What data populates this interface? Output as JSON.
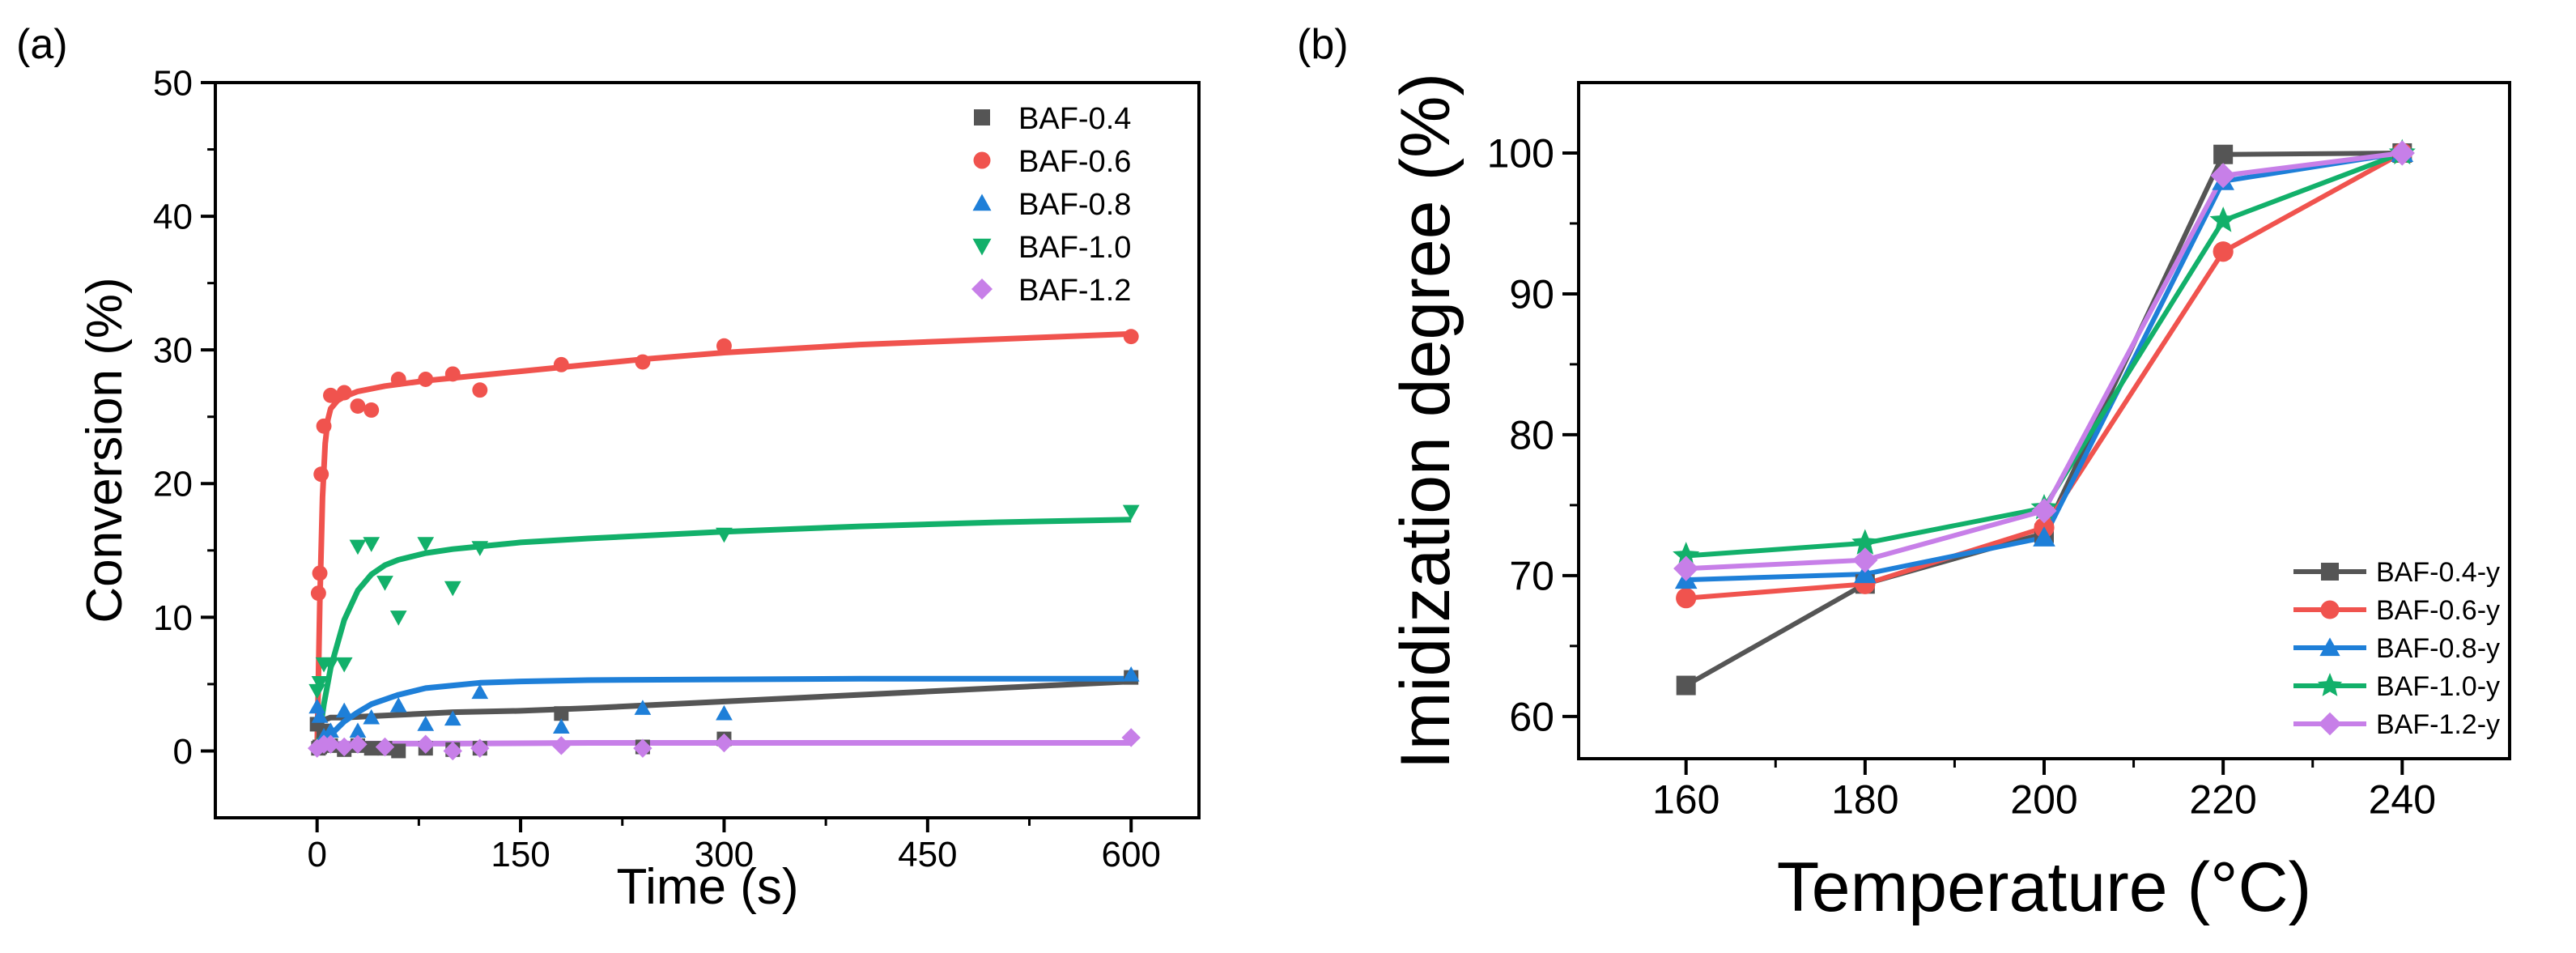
{
  "colors": {
    "BAF-0.4": "#555555",
    "BAF-0.6": "#F0534E",
    "BAF-0.8": "#1E7FD8",
    "BAF-1.0": "#12B06A",
    "BAF-1.2": "#C77FE8"
  },
  "chart_data": [
    {
      "id": "a",
      "panel_label": "(a)",
      "type": "scatter",
      "title": "",
      "xlabel": "Time (s)",
      "ylabel": "Conversion (%)",
      "xlim": [
        -75,
        650
      ],
      "ylim": [
        -5,
        50
      ],
      "xticks": [
        0,
        150,
        300,
        450,
        600
      ],
      "yticks": [
        0,
        10,
        20,
        30,
        40,
        50
      ],
      "legend_position": "top-right",
      "series": [
        {
          "name": "BAF-0.4",
          "marker": "square",
          "x": [
            0,
            1,
            2,
            5,
            10,
            20,
            30,
            40,
            50,
            60,
            80,
            100,
            120,
            180,
            240,
            300,
            600
          ],
          "y": [
            2.0,
            0.2,
            0.3,
            1.5,
            0.4,
            0.1,
            0.4,
            0.2,
            0.2,
            0.0,
            0.2,
            0.1,
            0.2,
            2.8,
            0.3,
            0.9,
            5.5
          ],
          "fit": {
            "x": [
              0,
              2,
              10,
              20,
              40,
              60,
              100,
              150,
              200,
              300,
              400,
              500,
              600
            ],
            "y": [
              0,
              2.2,
              2.5,
              2.5,
              2.6,
              2.7,
              2.9,
              3.0,
              3.2,
              3.7,
              4.2,
              4.7,
              5.2
            ]
          }
        },
        {
          "name": "BAF-0.6",
          "marker": "circle",
          "x": [
            1,
            2,
            3,
            5,
            10,
            20,
            30,
            40,
            60,
            80,
            100,
            120,
            180,
            240,
            300,
            600
          ],
          "y": [
            11.8,
            13.3,
            20.7,
            24.3,
            26.6,
            26.8,
            25.8,
            25.5,
            27.8,
            27.8,
            28.2,
            27.0,
            28.9,
            29.1,
            30.3,
            31.0
          ],
          "fit": {
            "x": [
              0,
              2,
              4,
              6,
              8,
              10,
              15,
              20,
              30,
              50,
              80,
              120,
              180,
              240,
              300,
              400,
              500,
              600
            ],
            "y": [
              0,
              11,
              19,
              23,
              24.8,
              25.6,
              26.2,
              26.5,
              26.9,
              27.3,
              27.7,
              28.1,
              28.7,
              29.3,
              29.8,
              30.4,
              30.8,
              31.2
            ]
          }
        },
        {
          "name": "BAF-0.8",
          "marker": "triangle-up",
          "x": [
            0,
            2,
            5,
            10,
            20,
            30,
            40,
            60,
            80,
            100,
            120,
            180,
            240,
            300,
            600
          ],
          "y": [
            3.3,
            2.6,
            1.1,
            1.5,
            3.0,
            1.5,
            2.5,
            3.4,
            2.0,
            2.4,
            4.4,
            1.8,
            3.2,
            2.8,
            5.7
          ],
          "fit": {
            "x": [
              0,
              10,
              20,
              30,
              40,
              60,
              80,
              100,
              120,
              150,
              200,
              300,
              400,
              500,
              600
            ],
            "y": [
              0,
              1.2,
              2.2,
              2.9,
              3.5,
              4.2,
              4.7,
              4.9,
              5.1,
              5.2,
              5.3,
              5.35,
              5.4,
              5.4,
              5.4
            ]
          }
        },
        {
          "name": "BAF-1.0",
          "marker": "triangle-down",
          "x": [
            0,
            2,
            5,
            10,
            20,
            30,
            40,
            50,
            60,
            80,
            100,
            120,
            300,
            600
          ],
          "y": [
            4.5,
            5.1,
            6.5,
            6.5,
            6.5,
            15.3,
            15.5,
            12.6,
            10.0,
            15.5,
            12.2,
            15.2,
            16.2,
            17.9
          ],
          "fit": {
            "x": [
              0,
              5,
              10,
              20,
              30,
              40,
              50,
              60,
              80,
              100,
              120,
              150,
              200,
              300,
              400,
              500,
              600
            ],
            "y": [
              0,
              3.5,
              6.2,
              9.8,
              12.0,
              13.2,
              13.9,
              14.3,
              14.8,
              15.1,
              15.3,
              15.6,
              15.9,
              16.4,
              16.8,
              17.1,
              17.3
            ]
          }
        },
        {
          "name": "BAF-1.2",
          "marker": "diamond",
          "x": [
            0,
            5,
            10,
            20,
            30,
            50,
            80,
            100,
            120,
            180,
            240,
            300,
            600
          ],
          "y": [
            0.2,
            0.5,
            0.5,
            0.3,
            0.5,
            0.3,
            0.5,
            0.0,
            0.2,
            0.4,
            0.2,
            0.6,
            1.0
          ],
          "fit": {
            "x": [
              0,
              5,
              10,
              20,
              50,
              100,
              200,
              300,
              400,
              500,
              600
            ],
            "y": [
              0.0,
              0.4,
              0.5,
              0.55,
              0.55,
              0.55,
              0.6,
              0.6,
              0.6,
              0.6,
              0.6
            ]
          }
        }
      ]
    },
    {
      "id": "b",
      "panel_label": "(b)",
      "type": "line",
      "title": "",
      "xlabel": "Temperature (°C)",
      "ylabel": "Imidization degree (%)",
      "xlim": [
        148,
        252
      ],
      "ylim": [
        57,
        105
      ],
      "xticks": [
        160,
        180,
        200,
        220,
        240
      ],
      "yticks": [
        60,
        70,
        80,
        90,
        100
      ],
      "legend_position": "bottom-right",
      "x": [
        160,
        180,
        200,
        220,
        240
      ],
      "series": [
        {
          "name": "BAF-0.4-y",
          "color_key": "BAF-0.4",
          "marker": "square",
          "values": [
            62.2,
            69.4,
            73.0,
            99.9,
            100.0
          ]
        },
        {
          "name": "BAF-0.6-y",
          "color_key": "BAF-0.6",
          "marker": "circle",
          "values": [
            68.4,
            69.4,
            73.4,
            93.0,
            100.0
          ]
        },
        {
          "name": "BAF-0.8-y",
          "color_key": "BAF-0.8",
          "marker": "triangle-up",
          "values": [
            69.7,
            70.1,
            72.7,
            98.0,
            100.0
          ]
        },
        {
          "name": "BAF-1.0-y",
          "color_key": "BAF-1.0",
          "marker": "star",
          "values": [
            71.4,
            72.3,
            74.8,
            95.2,
            100.0
          ]
        },
        {
          "name": "BAF-1.2-y",
          "color_key": "BAF-1.2",
          "marker": "diamond",
          "values": [
            70.5,
            71.1,
            74.6,
            98.4,
            100.0
          ]
        }
      ]
    }
  ]
}
